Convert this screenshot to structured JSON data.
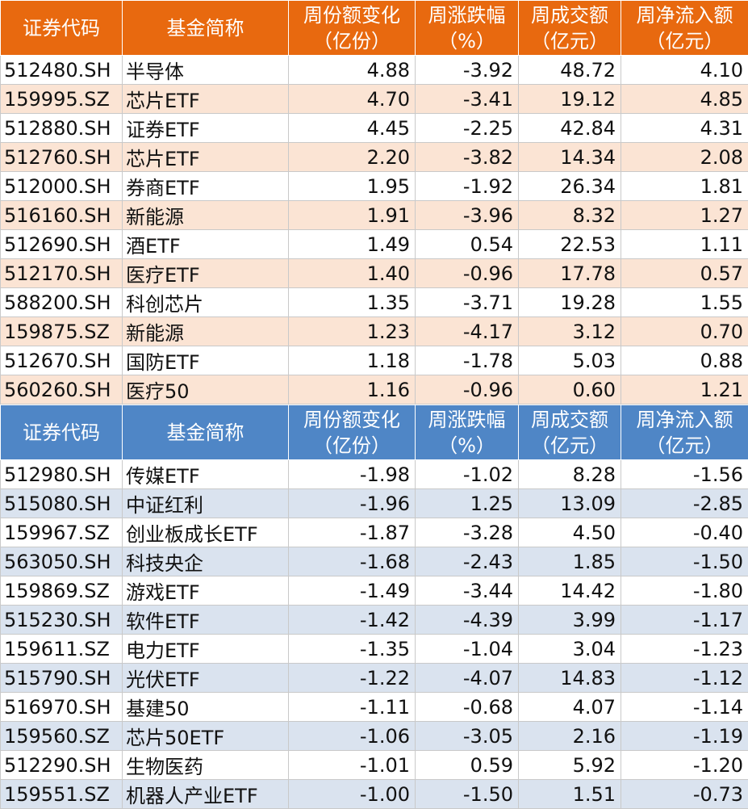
{
  "headers": {
    "code": "证券代码",
    "name": "基金简称",
    "share_change": [
      "周份额变化",
      "（亿份）"
    ],
    "change_pct": [
      "周涨跌幅",
      "（%）"
    ],
    "turnover": [
      "周成交额",
      "（亿元）"
    ],
    "net_inflow": [
      "周净流入额",
      "（亿元）"
    ]
  },
  "top_table": {
    "rows": [
      [
        "512480.SH",
        "半导体",
        "4.88",
        "-3.92",
        "48.72",
        "4.10"
      ],
      [
        "159995.SZ",
        "芯片ETF",
        "4.70",
        "-3.41",
        "19.12",
        "4.85"
      ],
      [
        "512880.SH",
        "证券ETF",
        "4.45",
        "-2.25",
        "42.84",
        "4.31"
      ],
      [
        "512760.SH",
        "芯片ETF",
        "2.20",
        "-3.82",
        "14.34",
        "2.08"
      ],
      [
        "512000.SH",
        "券商ETF",
        "1.95",
        "-1.92",
        "26.34",
        "1.81"
      ],
      [
        "516160.SH",
        "新能源",
        "1.91",
        "-3.96",
        "8.32",
        "1.27"
      ],
      [
        "512690.SH",
        "酒ETF",
        "1.49",
        "0.54",
        "22.53",
        "1.11"
      ],
      [
        "512170.SH",
        "医疗ETF",
        "1.40",
        "-0.96",
        "17.78",
        "0.57"
      ],
      [
        "588200.SH",
        "科创芯片",
        "1.35",
        "-3.71",
        "19.28",
        "1.55"
      ],
      [
        "159875.SZ",
        "新能源",
        "1.23",
        "-4.17",
        "3.12",
        "0.70"
      ],
      [
        "512670.SH",
        "国防ETF",
        "1.18",
        "-1.78",
        "5.03",
        "0.88"
      ],
      [
        "560260.SH",
        "医疗50",
        "1.16",
        "-0.96",
        "0.60",
        "1.21"
      ]
    ]
  },
  "bottom_table": {
    "rows": [
      [
        "512980.SH",
        "传媒ETF",
        "-1.98",
        "-1.02",
        "8.28",
        "-1.56"
      ],
      [
        "515080.SH",
        "中证红利",
        "-1.96",
        "1.25",
        "13.09",
        "-2.85"
      ],
      [
        "159967.SZ",
        "创业板成长ETF",
        "-1.87",
        "-3.28",
        "4.50",
        "-0.40"
      ],
      [
        "563050.SH",
        "科技央企",
        "-1.68",
        "-2.43",
        "1.85",
        "-1.50"
      ],
      [
        "159869.SZ",
        "游戏ETF",
        "-1.49",
        "-3.44",
        "14.42",
        "-1.80"
      ],
      [
        "515230.SH",
        "软件ETF",
        "-1.42",
        "-4.39",
        "3.99",
        "-1.17"
      ],
      [
        "159611.SZ",
        "电力ETF",
        "-1.35",
        "-1.04",
        "3.04",
        "-1.23"
      ],
      [
        "515790.SH",
        "光伏ETF",
        "-1.22",
        "-4.07",
        "14.83",
        "-1.12"
      ],
      [
        "516970.SH",
        "基建50",
        "-1.11",
        "-0.68",
        "4.07",
        "-1.14"
      ],
      [
        "159560.SZ",
        "芯片50ETF",
        "-1.06",
        "-3.05",
        "2.16",
        "-1.19"
      ],
      [
        "512290.SH",
        "生物医药",
        "-1.01",
        "0.59",
        "5.92",
        "-1.20"
      ],
      [
        "159551.SZ",
        "机器人产业ETF",
        "-1.00",
        "-1.50",
        "1.51",
        "-0.73"
      ]
    ]
  },
  "colors": {
    "top_header": "#e8690f",
    "top_alt_row": "#fbe4d4",
    "bottom_header": "#4f86c6",
    "bottom_alt_row": "#dae3ef"
  }
}
